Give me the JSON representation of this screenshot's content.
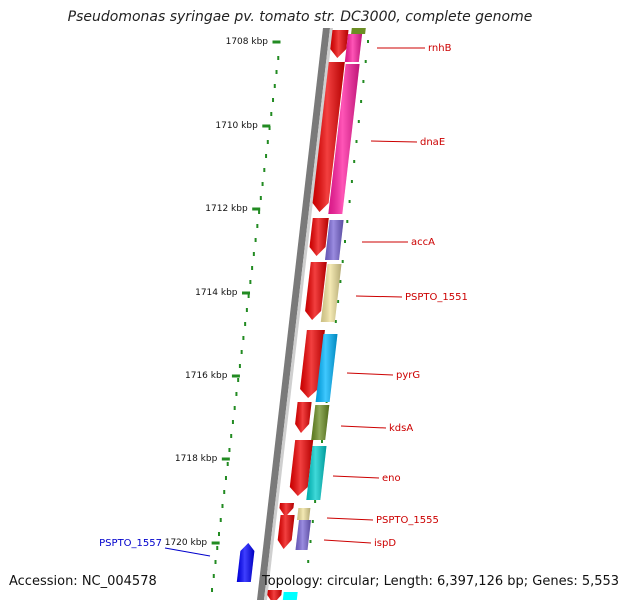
{
  "header": {
    "title": "Pseudomonas syringae pv. tomato str. DC3000, complete genome"
  },
  "footer": {
    "accession": "Accession: NC_004578",
    "topology": "Topology: circular; Length: 6,397,126 bp; Genes: 5,553"
  },
  "colors": {
    "strand_fwd": "#ee0000",
    "label_red": "#cc0000",
    "label_blue": "#0000cc",
    "tick_green": "#228b22",
    "backbone": "#7a7a7a"
  },
  "scale_ticks": [
    {
      "label": "1708 kbp"
    },
    {
      "label": "1710 kbp"
    },
    {
      "label": "1712 kbp"
    },
    {
      "label": "1714 kbp"
    },
    {
      "label": "1716 kbp"
    },
    {
      "label": "1718 kbp"
    },
    {
      "label": "1720 kbp"
    }
  ],
  "genes": [
    {
      "name": "rnhB",
      "color": "#ff1c9f"
    },
    {
      "name": "dnaE",
      "color": "#ff1c9f"
    },
    {
      "name": "accA",
      "color": "#7966d6"
    },
    {
      "name": "PSPTO_1551",
      "color": "#f0e29b"
    },
    {
      "name": "pyrG",
      "color": "#00b6ff"
    },
    {
      "name": "kdsA",
      "color": "#6b8e23"
    },
    {
      "name": "eno",
      "color": "#00cdcd"
    },
    {
      "name": "PSPTO_1555",
      "color": "#f0e29b"
    },
    {
      "name": "ispD",
      "color": "#7966d6"
    },
    {
      "name": "PSPTO_1557",
      "color": "#0000ff"
    }
  ]
}
